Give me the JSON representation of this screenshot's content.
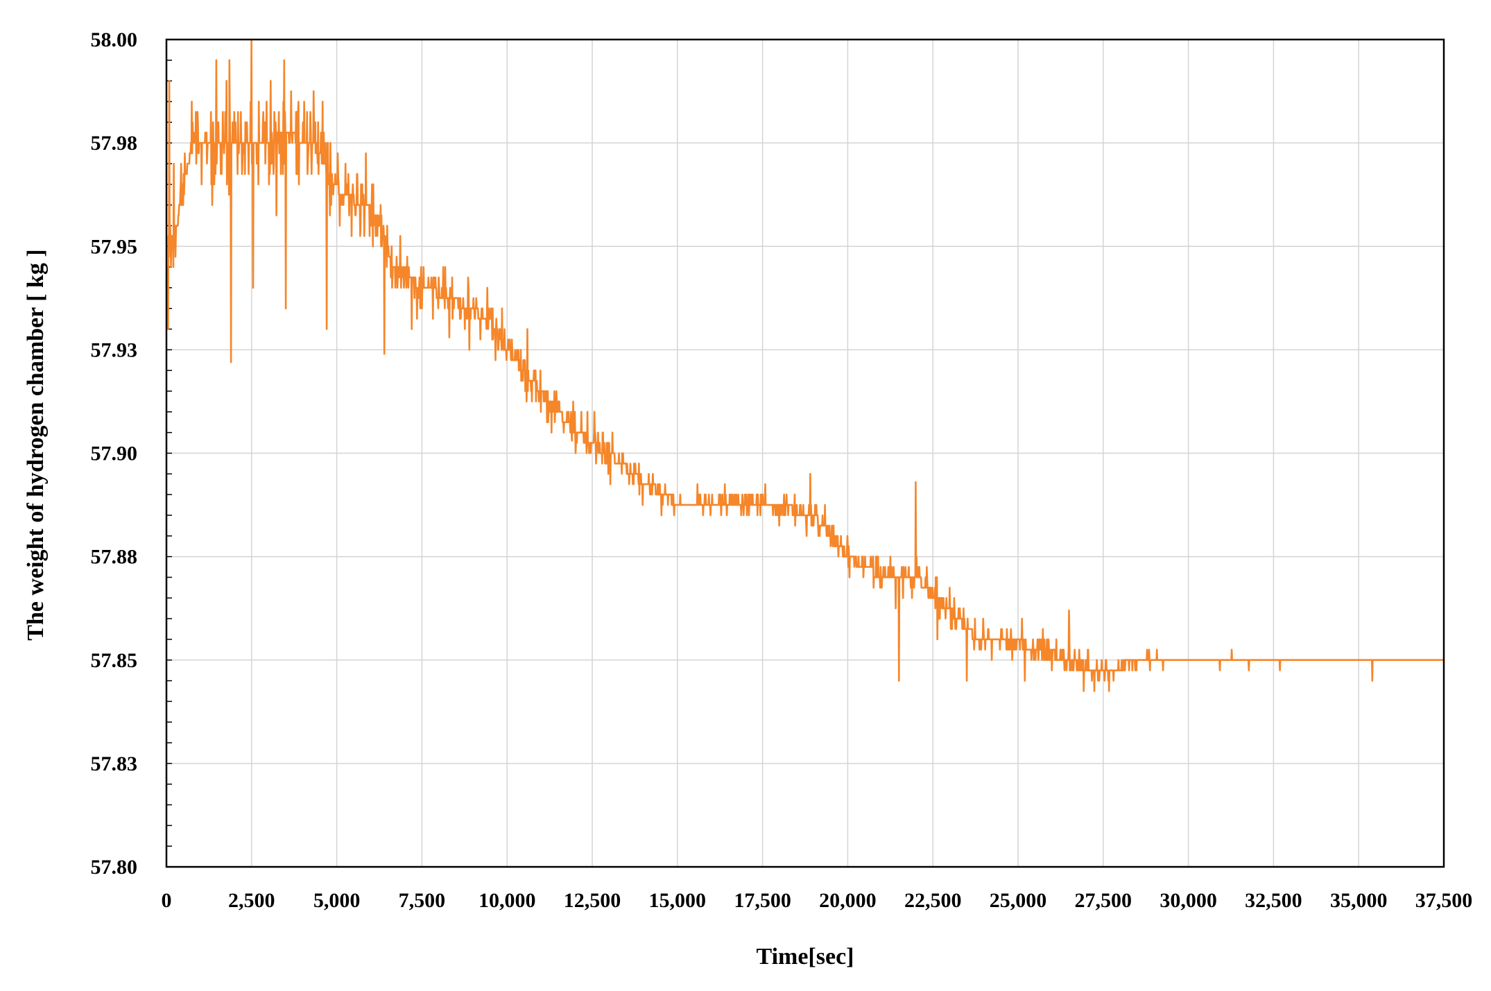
{
  "chart_data": {
    "type": "line",
    "title": "",
    "xlabel": "Time[sec]",
    "ylabel": "The weight of hydrogen chamber [ kg ]",
    "xlim": [
      0,
      37500
    ],
    "ylim": [
      57.8,
      58.0
    ],
    "grid": true,
    "legend": "none",
    "x_ticks": [
      "0",
      "2,500",
      "5,000",
      "7,500",
      "10,000",
      "12,500",
      "15,000",
      "17,500",
      "20,000",
      "22,500",
      "25,000",
      "27,500",
      "30,000",
      "32,500",
      "35,000",
      "37,500"
    ],
    "x_tick_values": [
      0,
      2500,
      5000,
      7500,
      10000,
      12500,
      15000,
      17500,
      20000,
      22500,
      25000,
      27500,
      30000,
      32500,
      35000,
      37500
    ],
    "y_ticks": [
      "57.80",
      "57.83",
      "57.85",
      "57.88",
      "57.90",
      "57.93",
      "57.95",
      "57.98",
      "58.00"
    ],
    "y_tick_values": [
      57.8,
      57.825,
      57.85,
      57.875,
      57.9,
      57.925,
      57.95,
      57.975,
      58.0
    ],
    "series": [
      {
        "color": "#F5862A",
        "baseline": {
          "x": [
            0,
            100,
            300,
            500,
            800,
            1500,
            2500,
            3500,
            4300,
            4800,
            5200,
            6000,
            6700,
            7500,
            8500,
            9500,
            10000,
            11000,
            12000,
            13000,
            14000,
            15000,
            16000,
            17500,
            19000,
            20000,
            21000,
            22000,
            23000,
            23800,
            24500,
            25500,
            26500,
            27500,
            28500,
            30000,
            32500,
            35000,
            37500
          ],
          "y": [
            57.94,
            57.95,
            57.955,
            57.965,
            57.975,
            57.975,
            57.975,
            57.977,
            57.975,
            57.967,
            57.962,
            57.96,
            57.945,
            57.94,
            57.937,
            57.932,
            57.925,
            57.915,
            57.905,
            57.9,
            57.893,
            57.888,
            57.888,
            57.888,
            57.885,
            57.875,
            57.87,
            57.87,
            57.862,
            57.855,
            57.855,
            57.853,
            57.85,
            57.847,
            57.85,
            57.85,
            57.85,
            57.85,
            57.85
          ]
        },
        "noise": {
          "x": [
            0,
            5000,
            7000,
            12000,
            15000,
            18000,
            20000,
            22500,
            24000,
            27000,
            28000,
            30000,
            37500
          ],
          "amplitude": [
            0.01,
            0.009,
            0.005,
            0.004,
            0.002,
            0.003,
            0.003,
            0.005,
            0.003,
            0.003,
            0.002,
            0.001,
            0.0
          ]
        },
        "spikes": [
          {
            "x": 2500,
            "y": 58.0
          },
          {
            "x": 1850,
            "y": 57.995
          },
          {
            "x": 1900,
            "y": 57.922
          },
          {
            "x": 50,
            "y": 57.93
          },
          {
            "x": 80,
            "y": 57.99
          },
          {
            "x": 2550,
            "y": 57.94
          },
          {
            "x": 3500,
            "y": 57.935
          },
          {
            "x": 4700,
            "y": 57.93
          },
          {
            "x": 6400,
            "y": 57.924
          },
          {
            "x": 7200,
            "y": 57.93
          },
          {
            "x": 8300,
            "y": 57.928
          },
          {
            "x": 10600,
            "y": 57.93
          },
          {
            "x": 11900,
            "y": 57.903
          },
          {
            "x": 18900,
            "y": 57.895
          },
          {
            "x": 22000,
            "y": 57.893
          },
          {
            "x": 21500,
            "y": 57.845
          },
          {
            "x": 23500,
            "y": 57.845
          },
          {
            "x": 25200,
            "y": 57.845
          },
          {
            "x": 26500,
            "y": 57.862
          },
          {
            "x": 35400,
            "y": 57.845
          }
        ]
      }
    ]
  }
}
